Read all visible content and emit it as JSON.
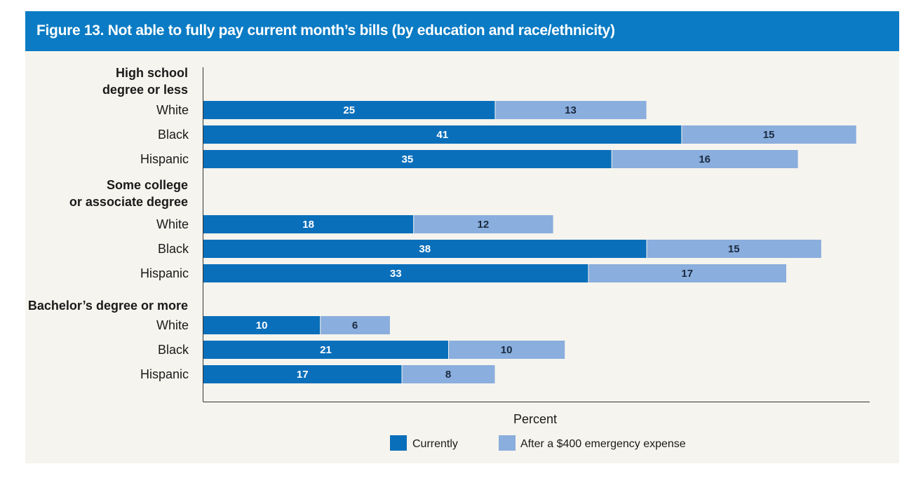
{
  "title": "Figure 13. Not able to fully pay current month’s bills (by education and race/ethnicity)",
  "colors": {
    "currently": "#0a6fba",
    "after": "#8aaedd",
    "header": "#0a7bc4",
    "panel": "#f6f4ee"
  },
  "chart_data": {
    "type": "bar",
    "orientation": "horizontal",
    "stacked": true,
    "xlabel": "Percent",
    "xlim": [
      0,
      57
    ],
    "grid": false,
    "legend_position": "bottom",
    "groups": [
      {
        "label_lines": [
          "High school",
          "degree or less"
        ],
        "categories": [
          "White",
          "Black",
          "Hispanic"
        ]
      },
      {
        "label_lines": [
          "Some college",
          "or associate degree"
        ],
        "categories": [
          "White",
          "Black",
          "Hispanic"
        ]
      },
      {
        "label_lines": [
          "Bachelor’s degree or more"
        ],
        "categories": [
          "White",
          "Black",
          "Hispanic"
        ]
      }
    ],
    "series": [
      {
        "name": "Currently",
        "values": [
          25,
          41,
          35,
          18,
          38,
          33,
          10,
          21,
          17
        ]
      },
      {
        "name": "After a $400 emergency expense",
        "values": [
          13,
          15,
          16,
          12,
          15,
          17,
          6,
          10,
          8
        ]
      }
    ]
  }
}
